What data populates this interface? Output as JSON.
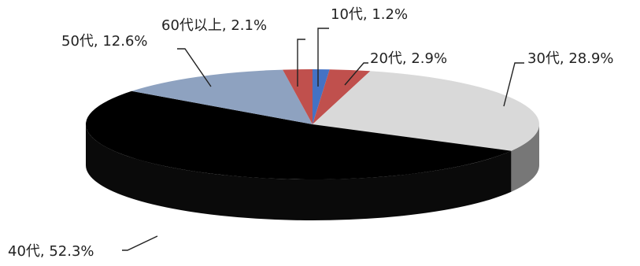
{
  "chart_data": {
    "type": "pie",
    "title": "",
    "three_d": true,
    "slices": [
      {
        "label": "10代",
        "value": 1.2,
        "value_label": "1.2%",
        "color": "#4472c4"
      },
      {
        "label": "20代",
        "value": 2.9,
        "value_label": "2.9%",
        "color": "#c0504d"
      },
      {
        "label": "30代",
        "value": 28.9,
        "value_label": "28.9%",
        "color": "#d9d9d9"
      },
      {
        "label": "40代",
        "value": 52.3,
        "value_label": "52.3%",
        "color": "#000000"
      },
      {
        "label": "50代",
        "value": 12.6,
        "value_label": "12.6%",
        "color": "#8ea2c0"
      },
      {
        "label": "60代以上",
        "value": 2.1,
        "value_label": "2.1%",
        "color": "#c0504d"
      }
    ],
    "data_labels": [
      "10代, 1.2%",
      "20代, 2.9%",
      "30代, 28.9%",
      "40代, 52.3%",
      "50代, 12.6%",
      "60代以上, 2.1%"
    ]
  }
}
